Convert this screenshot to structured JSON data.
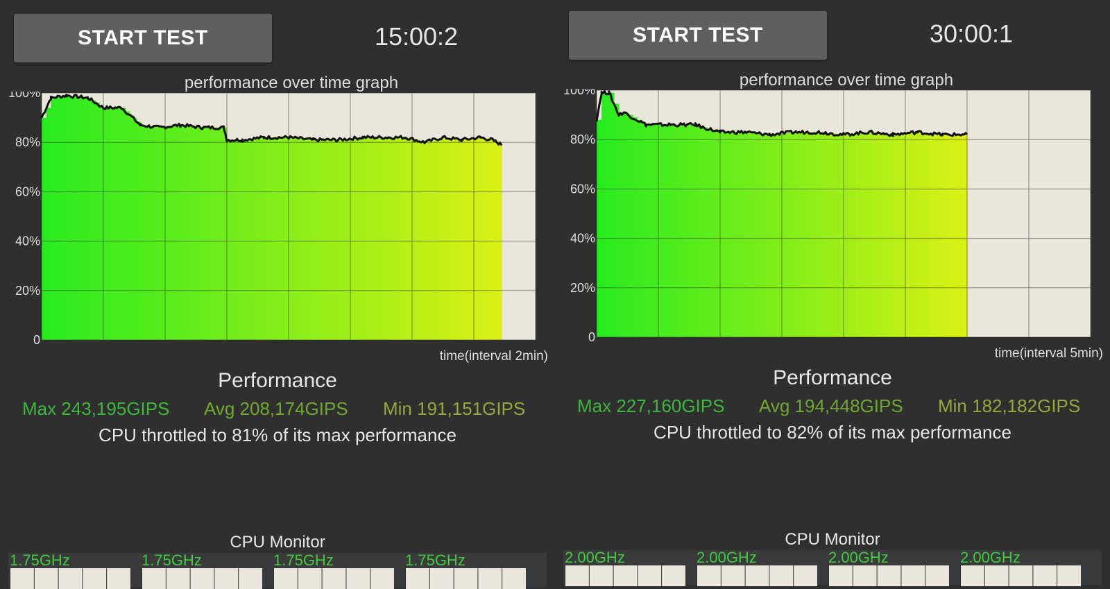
{
  "colors": {
    "background": "#2f2f2f",
    "button": "#5f5f5f",
    "graph_bg": "#e9e7dc",
    "line": "#111111",
    "dip_line": "#2a3fd0",
    "max_text": "#3bb73b",
    "avg_text": "#70a82f",
    "min_text": "#93a83a",
    "core_freq_text": "#3ecb3e"
  },
  "panels": [
    {
      "start_button": "START TEST",
      "timer": "15:00:2",
      "graph_title": "performance over time graph",
      "y_ticks": [
        "100%",
        "80%",
        "60%",
        "40%",
        "20%",
        "0"
      ],
      "x_label": "time(interval 2min)",
      "performance_title": "Performance",
      "max": "Max 243,195GIPS",
      "avg": "Avg 208,174GIPS",
      "min": "Min 191,151GIPS",
      "throttle": "CPU throttled to 81% of its max performance",
      "cpu_monitor_title": "CPU Monitor",
      "cores": [
        "1.75GHz",
        "1.75GHz",
        "1.75GHz",
        "1.75GHz"
      ]
    },
    {
      "start_button": "START TEST",
      "timer": "30:00:1",
      "graph_title": "performance over time graph",
      "y_ticks": [
        "100%",
        "80%",
        "60%",
        "40%",
        "20%",
        "0"
      ],
      "x_label": "time(interval 5min)",
      "performance_title": "Performance",
      "max": "Max 227,160GIPS",
      "avg": "Avg 194,448GIPS",
      "min": "Min 182,182GIPS",
      "throttle": "CPU throttled to 82% of its max performance",
      "cpu_monitor_title": "CPU Monitor",
      "cores": [
        "2.00GHz",
        "2.00GHz",
        "2.00GHz",
        "2.00GHz"
      ]
    }
  ],
  "chart_data": [
    {
      "type": "area",
      "title": "performance over time graph",
      "xlabel": "time(interval 2min)",
      "ylabel": "",
      "ylim": [
        0,
        100
      ],
      "x_range_minutes": [
        0,
        16
      ],
      "grid": true,
      "series": [
        {
          "x": [
            0,
            0.3,
            0.8,
            1.5,
            2.0,
            2.6,
            3.2,
            3.8,
            4.5,
            5.2,
            5.9,
            6.0,
            6.5,
            7.2,
            8.0,
            8.8,
            9.6,
            10.4,
            11.2,
            11.8,
            12.4,
            13.0,
            13.6,
            14.2,
            14.6,
            14.9
          ],
          "y": [
            90,
            98,
            99,
            98,
            94,
            94,
            87,
            86,
            87,
            86,
            86,
            81,
            81,
            82,
            82,
            81,
            81,
            82,
            82,
            82,
            80,
            82,
            81,
            82,
            81,
            79
          ]
        }
      ]
    },
    {
      "type": "area",
      "title": "performance over time graph",
      "xlabel": "time(interval 5min)",
      "ylabel": "",
      "ylim": [
        0,
        100
      ],
      "x_range_minutes": [
        0,
        40
      ],
      "grid": true,
      "series": [
        {
          "x": [
            0,
            0.4,
            1.0,
            1.8,
            2.2,
            4.0,
            6.0,
            8.0,
            8.6,
            10.0,
            12.0,
            14.0,
            16.0,
            18.0,
            20.0,
            22.0,
            24.0,
            26.0,
            28.0,
            29.5,
            30.0
          ],
          "y": [
            88,
            99,
            99,
            90,
            91,
            86,
            86,
            86,
            85,
            83,
            83,
            82,
            83,
            83,
            82,
            83,
            82,
            83,
            82,
            82,
            82
          ]
        }
      ]
    }
  ]
}
